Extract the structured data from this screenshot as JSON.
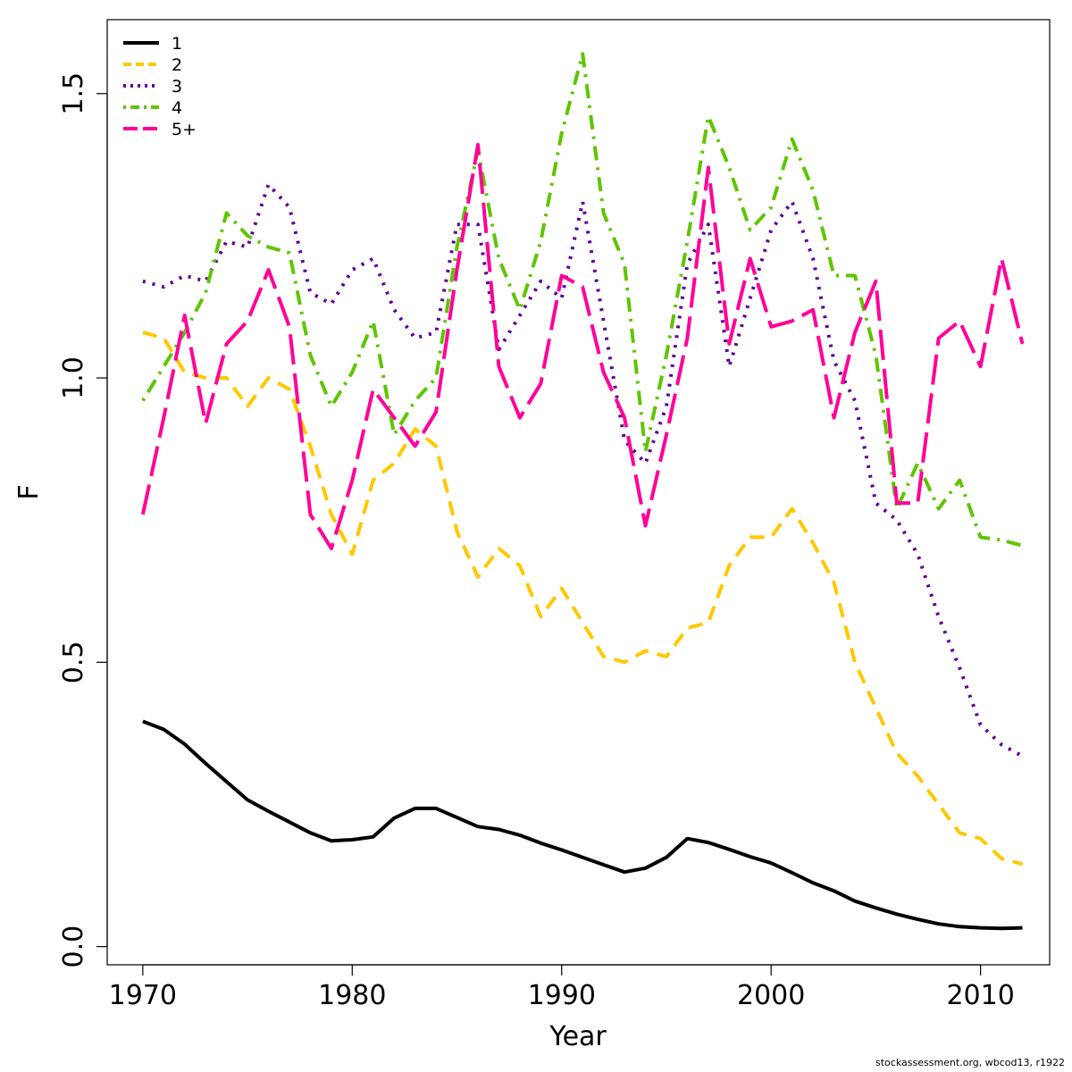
{
  "chart_data": {
    "type": "line",
    "title": "",
    "xlabel": "Year",
    "ylabel": "F",
    "xlim": [
      1968.3,
      2013.3
    ],
    "ylim": [
      -0.032,
      1.63
    ],
    "xticks": [
      1970,
      1980,
      1990,
      2000,
      2010
    ],
    "yticks": [
      0.0,
      0.5,
      1.0,
      1.5
    ],
    "ytick_labels": [
      "0.0",
      "0.5",
      "1.0",
      "1.5"
    ],
    "grid": false,
    "legend_position": "top-left",
    "x": [
      1970,
      1971,
      1972,
      1973,
      1974,
      1975,
      1976,
      1977,
      1978,
      1979,
      1980,
      1981,
      1982,
      1983,
      1984,
      1985,
      1986,
      1987,
      1988,
      1989,
      1990,
      1991,
      1992,
      1993,
      1994,
      1995,
      1996,
      1997,
      1998,
      1999,
      2000,
      2001,
      2002,
      2003,
      2004,
      2005,
      2006,
      2007,
      2008,
      2009,
      2010,
      2011,
      2012
    ],
    "series": [
      {
        "name": "1",
        "color": "#000000",
        "dash": "solid",
        "values": [
          0.396,
          0.382,
          0.356,
          0.322,
          0.29,
          0.258,
          0.238,
          0.219,
          0.2,
          0.186,
          0.188,
          0.193,
          0.226,
          0.243,
          0.243,
          0.227,
          0.211,
          0.206,
          0.196,
          0.182,
          0.17,
          0.157,
          0.144,
          0.131,
          0.138,
          0.157,
          0.19,
          0.183,
          0.171,
          0.158,
          0.147,
          0.13,
          0.112,
          0.098,
          0.08,
          0.068,
          0.057,
          0.048,
          0.04,
          0.035,
          0.033,
          0.032,
          0.033
        ]
      },
      {
        "name": "2",
        "color": "#FFC800",
        "dash": "dashed",
        "values": [
          1.08,
          1.07,
          1.01,
          1.0,
          1.0,
          0.95,
          1.0,
          0.98,
          0.88,
          0.76,
          0.69,
          0.82,
          0.85,
          0.91,
          0.88,
          0.73,
          0.65,
          0.7,
          0.67,
          0.58,
          0.63,
          0.57,
          0.51,
          0.5,
          0.52,
          0.51,
          0.56,
          0.57,
          0.67,
          0.72,
          0.72,
          0.77,
          0.71,
          0.64,
          0.5,
          0.42,
          0.34,
          0.3,
          0.25,
          0.2,
          0.19,
          0.155,
          0.145
        ]
      },
      {
        "name": "3",
        "color": "#5E0098",
        "dash": "dotted",
        "values": [
          1.17,
          1.16,
          1.18,
          1.17,
          1.24,
          1.23,
          1.34,
          1.3,
          1.15,
          1.13,
          1.19,
          1.21,
          1.12,
          1.07,
          1.08,
          1.27,
          1.27,
          1.05,
          1.11,
          1.17,
          1.14,
          1.31,
          1.1,
          0.89,
          0.85,
          0.95,
          1.2,
          1.27,
          1.02,
          1.14,
          1.26,
          1.31,
          1.21,
          1.03,
          0.96,
          0.78,
          0.75,
          0.69,
          0.58,
          0.49,
          0.39,
          0.355,
          0.335
        ]
      },
      {
        "name": "4",
        "color": "#5FC500",
        "dash": "dotdash",
        "values": [
          0.96,
          1.02,
          1.08,
          1.15,
          1.29,
          1.25,
          1.23,
          1.22,
          1.04,
          0.95,
          1.01,
          1.1,
          0.9,
          0.96,
          1.0,
          1.23,
          1.4,
          1.21,
          1.12,
          1.24,
          1.43,
          1.57,
          1.29,
          1.2,
          0.87,
          1.04,
          1.24,
          1.46,
          1.37,
          1.26,
          1.3,
          1.42,
          1.33,
          1.18,
          1.18,
          1.04,
          0.77,
          0.85,
          0.77,
          0.82,
          0.72,
          0.715,
          0.705
        ]
      },
      {
        "name": "5+",
        "color": "#FF0099",
        "dash": "longdash",
        "values": [
          0.76,
          0.93,
          1.11,
          0.92,
          1.06,
          1.1,
          1.19,
          1.09,
          0.76,
          0.7,
          0.82,
          0.98,
          0.93,
          0.88,
          0.94,
          1.19,
          1.41,
          1.02,
          0.93,
          0.99,
          1.18,
          1.16,
          1.01,
          0.93,
          0.74,
          0.9,
          1.07,
          1.37,
          1.06,
          1.21,
          1.09,
          1.1,
          1.12,
          0.93,
          1.08,
          1.17,
          0.78,
          0.78,
          1.07,
          1.1,
          1.02,
          1.21,
          1.06
        ]
      }
    ]
  },
  "footnote": "stockassessment.org, wbcod13, r1922"
}
